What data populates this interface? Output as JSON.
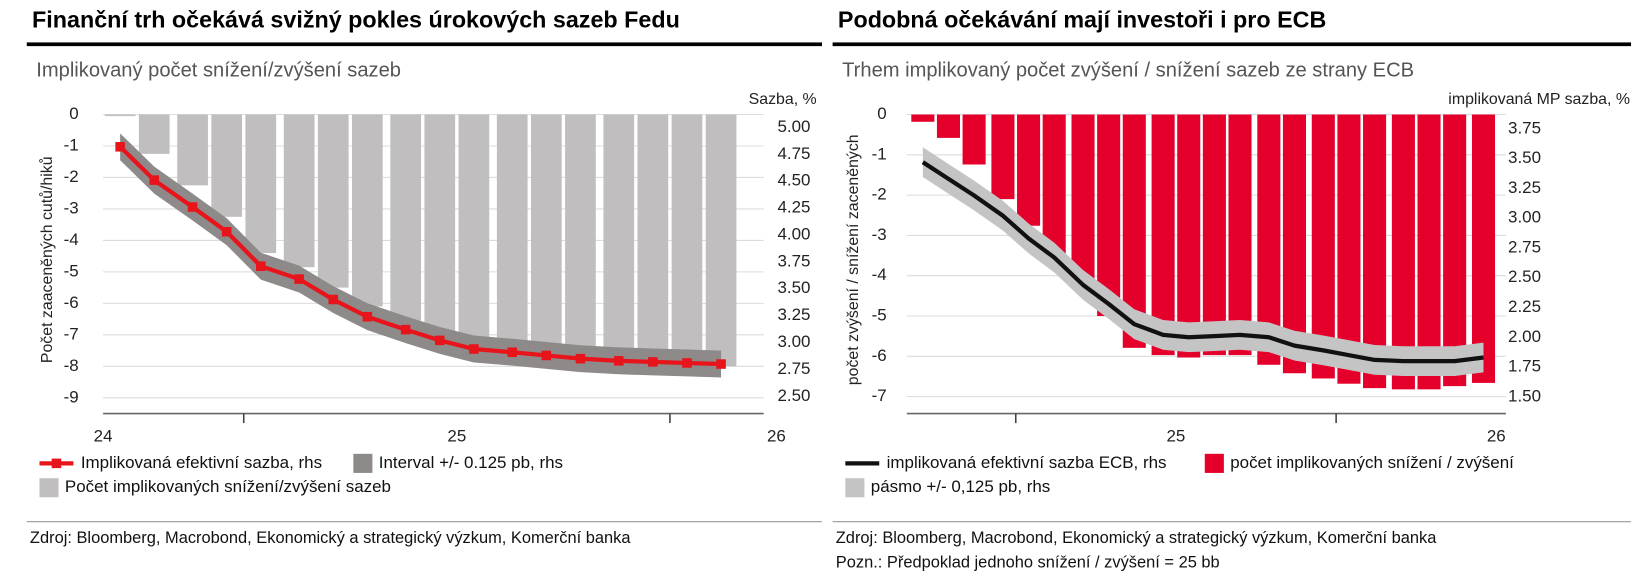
{
  "chart_data": [
    {
      "type": "bar_line",
      "title": "Finanční trh očekává svižný pokles úrokových sazeb Fedu",
      "subtitle": "Implikovaný počet snížení/zvýšení sazeb",
      "y_label": "Počet zaaceněných cutů/hiků",
      "y2_label": "Sazba, %",
      "source": "Zdroj: Bloomberg, Macrobond, Ekonomický a strategický výzkum, Komerční banka",
      "xlim": [
        24.67,
        26.22
      ],
      "xticks": [
        24,
        25,
        26
      ],
      "ylim": [
        -9.5,
        0
      ],
      "yticks": [
        0,
        -1,
        -2,
        -3,
        -4,
        -5,
        -6,
        -7,
        -8,
        -9
      ],
      "y2lim": [
        2.34,
        5.12
      ],
      "y2ticks": [
        {
          "value": 5,
          "label": "5.00"
        },
        4.75,
        {
          "value": 4.5,
          "label": "4.50"
        },
        4.25,
        {
          "value": 4,
          "label": "4.00"
        },
        3.75,
        {
          "value": 3.5,
          "label": "3.50"
        },
        3.25,
        {
          "value": 3,
          "label": "3.00"
        },
        2.75,
        {
          "value": 2.5,
          "label": "2.50"
        }
      ],
      "grid": true,
      "series": [
        {
          "name": "Implikovaná efektivní sazba, rhs",
          "type": "line",
          "axis": "y2",
          "color": "#e8141c",
          "markers": true,
          "x": [
            24.71,
            24.79,
            24.88,
            24.96,
            25.04,
            25.13,
            25.21,
            25.29,
            25.38,
            25.46,
            25.54,
            25.63,
            25.71,
            25.79,
            25.88,
            25.96,
            26.04,
            26.12
          ],
          "values": [
            4.82,
            4.51,
            4.26,
            4.03,
            3.71,
            3.59,
            3.4,
            3.24,
            3.12,
            3.02,
            2.94,
            2.91,
            2.88,
            2.85,
            2.83,
            2.82,
            2.81,
            2.8
          ]
        },
        {
          "name": "Interval +/- 0.125 pb, rhs",
          "type": "band",
          "axis": "y2",
          "color": "#8f8a8a",
          "half_width": 0.125
        },
        {
          "name": "Počet implikovaných snížení/zvýšení sazeb",
          "type": "bar",
          "color": "#c0bebe",
          "x": [
            24.71,
            24.79,
            24.88,
            24.96,
            25.04,
            25.13,
            25.21,
            25.29,
            25.38,
            25.46,
            25.54,
            25.63,
            25.71,
            25.79,
            25.88,
            25.96,
            26.04,
            26.12
          ],
          "values": [
            -0.05,
            -1.25,
            -2.25,
            -3.25,
            -4.4,
            -4.85,
            -5.5,
            -6.1,
            -6.55,
            -6.95,
            -7.3,
            -7.5,
            -7.6,
            -7.7,
            -7.8,
            -7.85,
            -7.9,
            -8.0
          ]
        }
      ]
    },
    {
      "type": "bar_line",
      "title": "Podobná očekávání mají investoři i pro ECB",
      "subtitle": "Trhem implikovaný počet zvýšení / snížení sazeb ze strany ECB",
      "y_label": "počet zvýšení / snížení zaceněných",
      "y2_label": "implikovaná MP sazba, %",
      "source": "Zdroj: Bloomberg, Macrobond, Ekonomický a strategický výzkum, Komerční banka",
      "note": "Pozn.: Předpoklad jednoho snížení / zvýšení = 25 bb",
      "xlim": [
        24.66,
        26.53
      ],
      "xticks": [
        25,
        26
      ],
      "ylim": [
        -7.42,
        0
      ],
      "yticks": [
        0,
        -1,
        -2,
        -3,
        -4,
        -5,
        -6,
        -7
      ],
      "y2lim": [
        1.36,
        3.87
      ],
      "y2ticks": [
        3.75,
        {
          "value": 3.5,
          "label": "3.50"
        },
        3.25,
        {
          "value": 3,
          "label": "3.00"
        },
        2.75,
        {
          "value": 2.5,
          "label": "2.50"
        },
        2.25,
        {
          "value": 2,
          "label": "2.00"
        },
        1.75,
        {
          "value": 1.5,
          "label": "1.50"
        }
      ],
      "grid": true,
      "series": [
        {
          "name": "implikovaná efektivní sazba ECB, rhs",
          "type": "line",
          "axis": "y2",
          "color": "#111111",
          "markers": false,
          "x": [
            24.71,
            24.79,
            24.87,
            24.96,
            25.04,
            25.12,
            25.21,
            25.29,
            25.37,
            25.46,
            25.54,
            25.62,
            25.7,
            25.79,
            25.87,
            25.96,
            26.04,
            26.12,
            26.21,
            26.29,
            26.37,
            26.46
          ],
          "values": [
            3.47,
            3.33,
            3.19,
            3.02,
            2.83,
            2.67,
            2.44,
            2.28,
            2.11,
            2.02,
            2.0,
            2.01,
            2.02,
            2.0,
            1.93,
            1.89,
            1.85,
            1.81,
            1.8,
            1.8,
            1.8,
            1.83
          ]
        },
        {
          "name": "počet implikovaných snížení / zvýšení",
          "type": "bar",
          "color": "#e4002b",
          "x": [
            24.71,
            24.79,
            24.87,
            24.96,
            25.04,
            25.12,
            25.21,
            25.29,
            25.37,
            25.46,
            25.54,
            25.62,
            25.7,
            25.79,
            25.87,
            25.96,
            26.04,
            26.12,
            26.21,
            26.29,
            26.37,
            26.46
          ],
          "values": [
            -0.18,
            -0.58,
            -1.24,
            -2.1,
            -2.76,
            -3.47,
            -4.21,
            -5.0,
            -5.79,
            -5.97,
            -6.03,
            -5.97,
            -5.97,
            -6.21,
            -6.42,
            -6.55,
            -6.68,
            -6.79,
            -6.82,
            -6.82,
            -6.74,
            -6.66
          ]
        },
        {
          "name": "pásmo +/- 0,125 pb, rhs",
          "type": "band",
          "axis": "y2",
          "color": "#c4c4c4",
          "half_width": 0.125
        }
      ]
    }
  ]
}
